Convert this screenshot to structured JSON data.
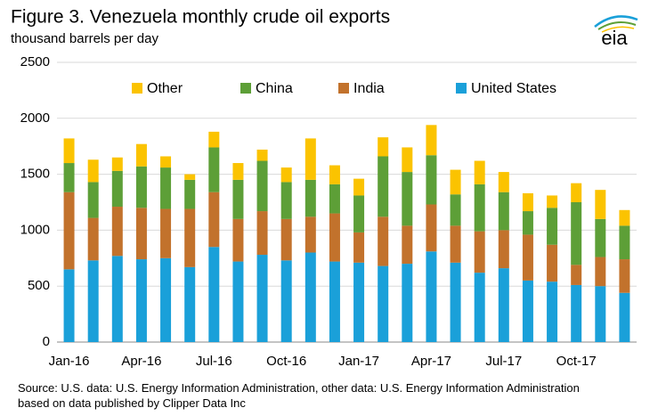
{
  "chart_data": {
    "type": "stacked_bar",
    "title": "Figure 3. Venezuela monthly crude oil exports",
    "subtitle": "thousand barrels per day",
    "logo": "eia",
    "source": "Source: U.S. data: U.S. Energy Information Administration, other data: U.S. Energy Information Administration based on data published by Clipper Data Inc",
    "categories": [
      "Jan-16",
      null,
      null,
      "Apr-16",
      null,
      null,
      "Jul-16",
      null,
      null,
      "Oct-16",
      null,
      null,
      "Jan-17",
      null,
      null,
      "Apr-17",
      null,
      null,
      "Jul-17",
      null,
      null,
      "Oct-17",
      null,
      null
    ],
    "series": [
      {
        "name": "United States",
        "color": "#1aa0d9",
        "values": [
          650,
          730,
          770,
          740,
          750,
          670,
          850,
          720,
          780,
          730,
          800,
          720,
          710,
          680,
          700,
          810,
          710,
          620,
          660,
          550,
          540,
          510,
          500,
          440
        ]
      },
      {
        "name": "India",
        "color": "#c2722c",
        "values": [
          690,
          380,
          440,
          460,
          440,
          520,
          490,
          380,
          390,
          370,
          320,
          430,
          270,
          440,
          340,
          420,
          330,
          370,
          340,
          410,
          330,
          180,
          260,
          300
        ]
      },
      {
        "name": "China",
        "color": "#5d9f37",
        "values": [
          260,
          320,
          320,
          370,
          370,
          260,
          400,
          350,
          450,
          330,
          330,
          260,
          330,
          540,
          480,
          440,
          280,
          420,
          340,
          210,
          330,
          560,
          340,
          300
        ]
      },
      {
        "name": "Other",
        "color": "#fbc300",
        "values": [
          220,
          200,
          120,
          200,
          100,
          50,
          140,
          150,
          100,
          130,
          370,
          170,
          150,
          170,
          220,
          270,
          220,
          210,
          180,
          160,
          110,
          170,
          260,
          140
        ]
      }
    ],
    "ylim": [
      0,
      2500
    ],
    "yticks": [
      0,
      500,
      1000,
      1500,
      2000,
      2500
    ],
    "grid": true,
    "legend": "top"
  }
}
